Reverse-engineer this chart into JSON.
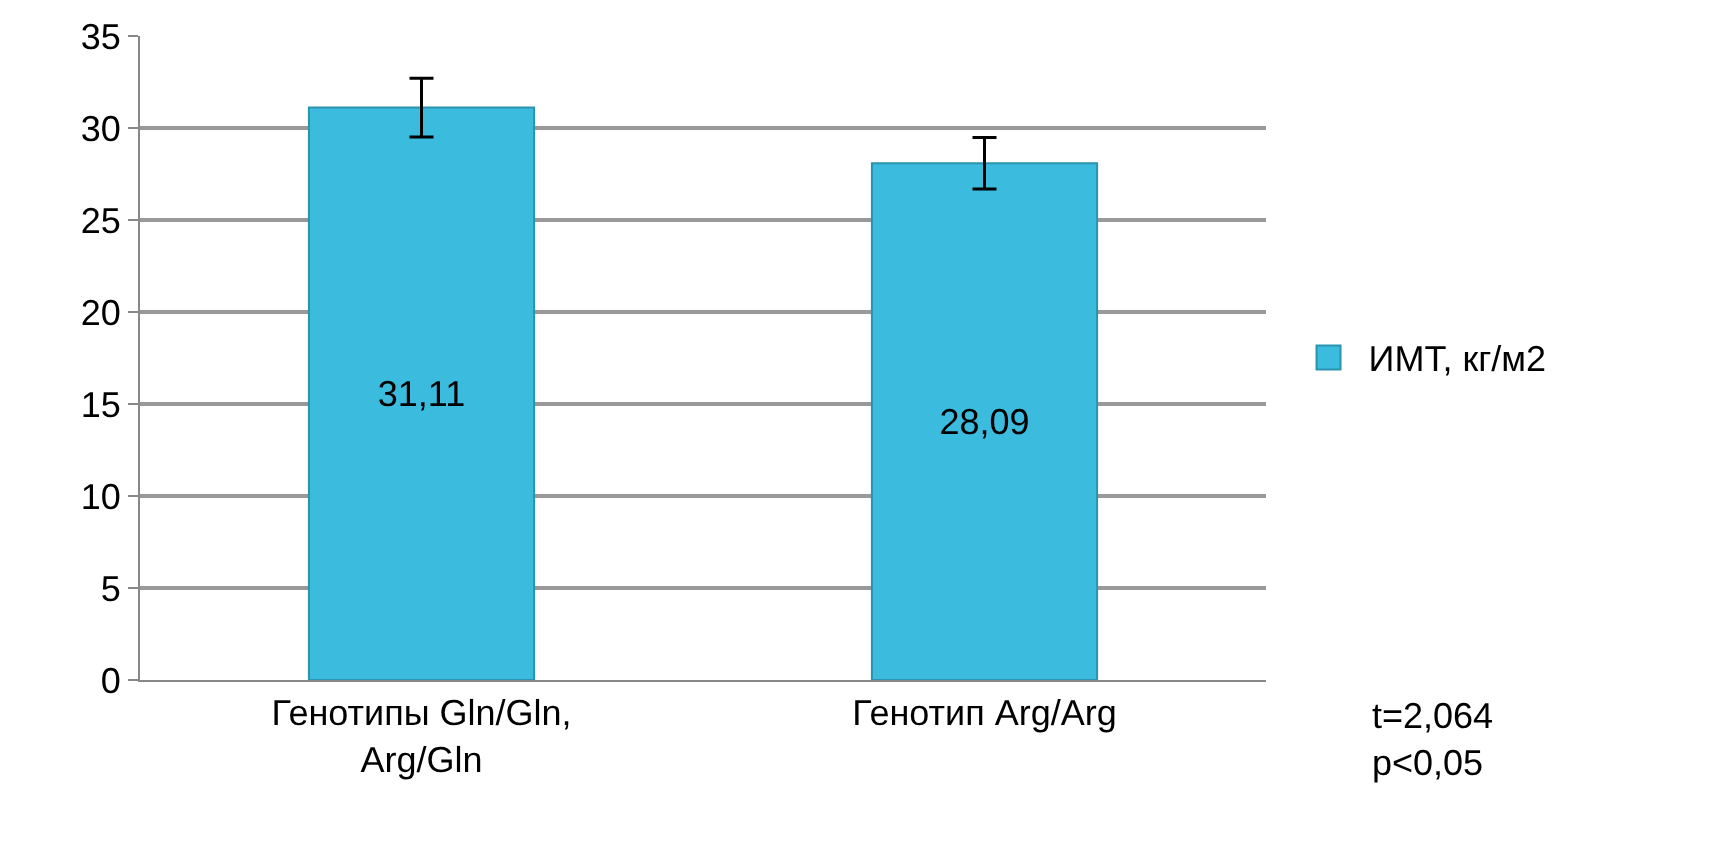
{
  "chart_data": {
    "type": "bar",
    "categories": [
      "Генотипы Gln/Gln, Arg/Gln",
      "Генотип Arg/Arg"
    ],
    "series": [
      {
        "name": "ИМТ, кг/м2",
        "color": "#3bbbdd",
        "values": [
          31.11,
          28.09
        ],
        "errors": [
          1.6,
          1.4
        ]
      }
    ],
    "value_labels": [
      "31,11",
      "28,09"
    ],
    "ylim": [
      0,
      35
    ],
    "yticks": [
      0,
      5,
      10,
      15,
      20,
      25,
      30,
      35
    ],
    "grid": "y",
    "legend": "right",
    "annotations": [
      "t=2,064\np<0,05"
    ]
  }
}
